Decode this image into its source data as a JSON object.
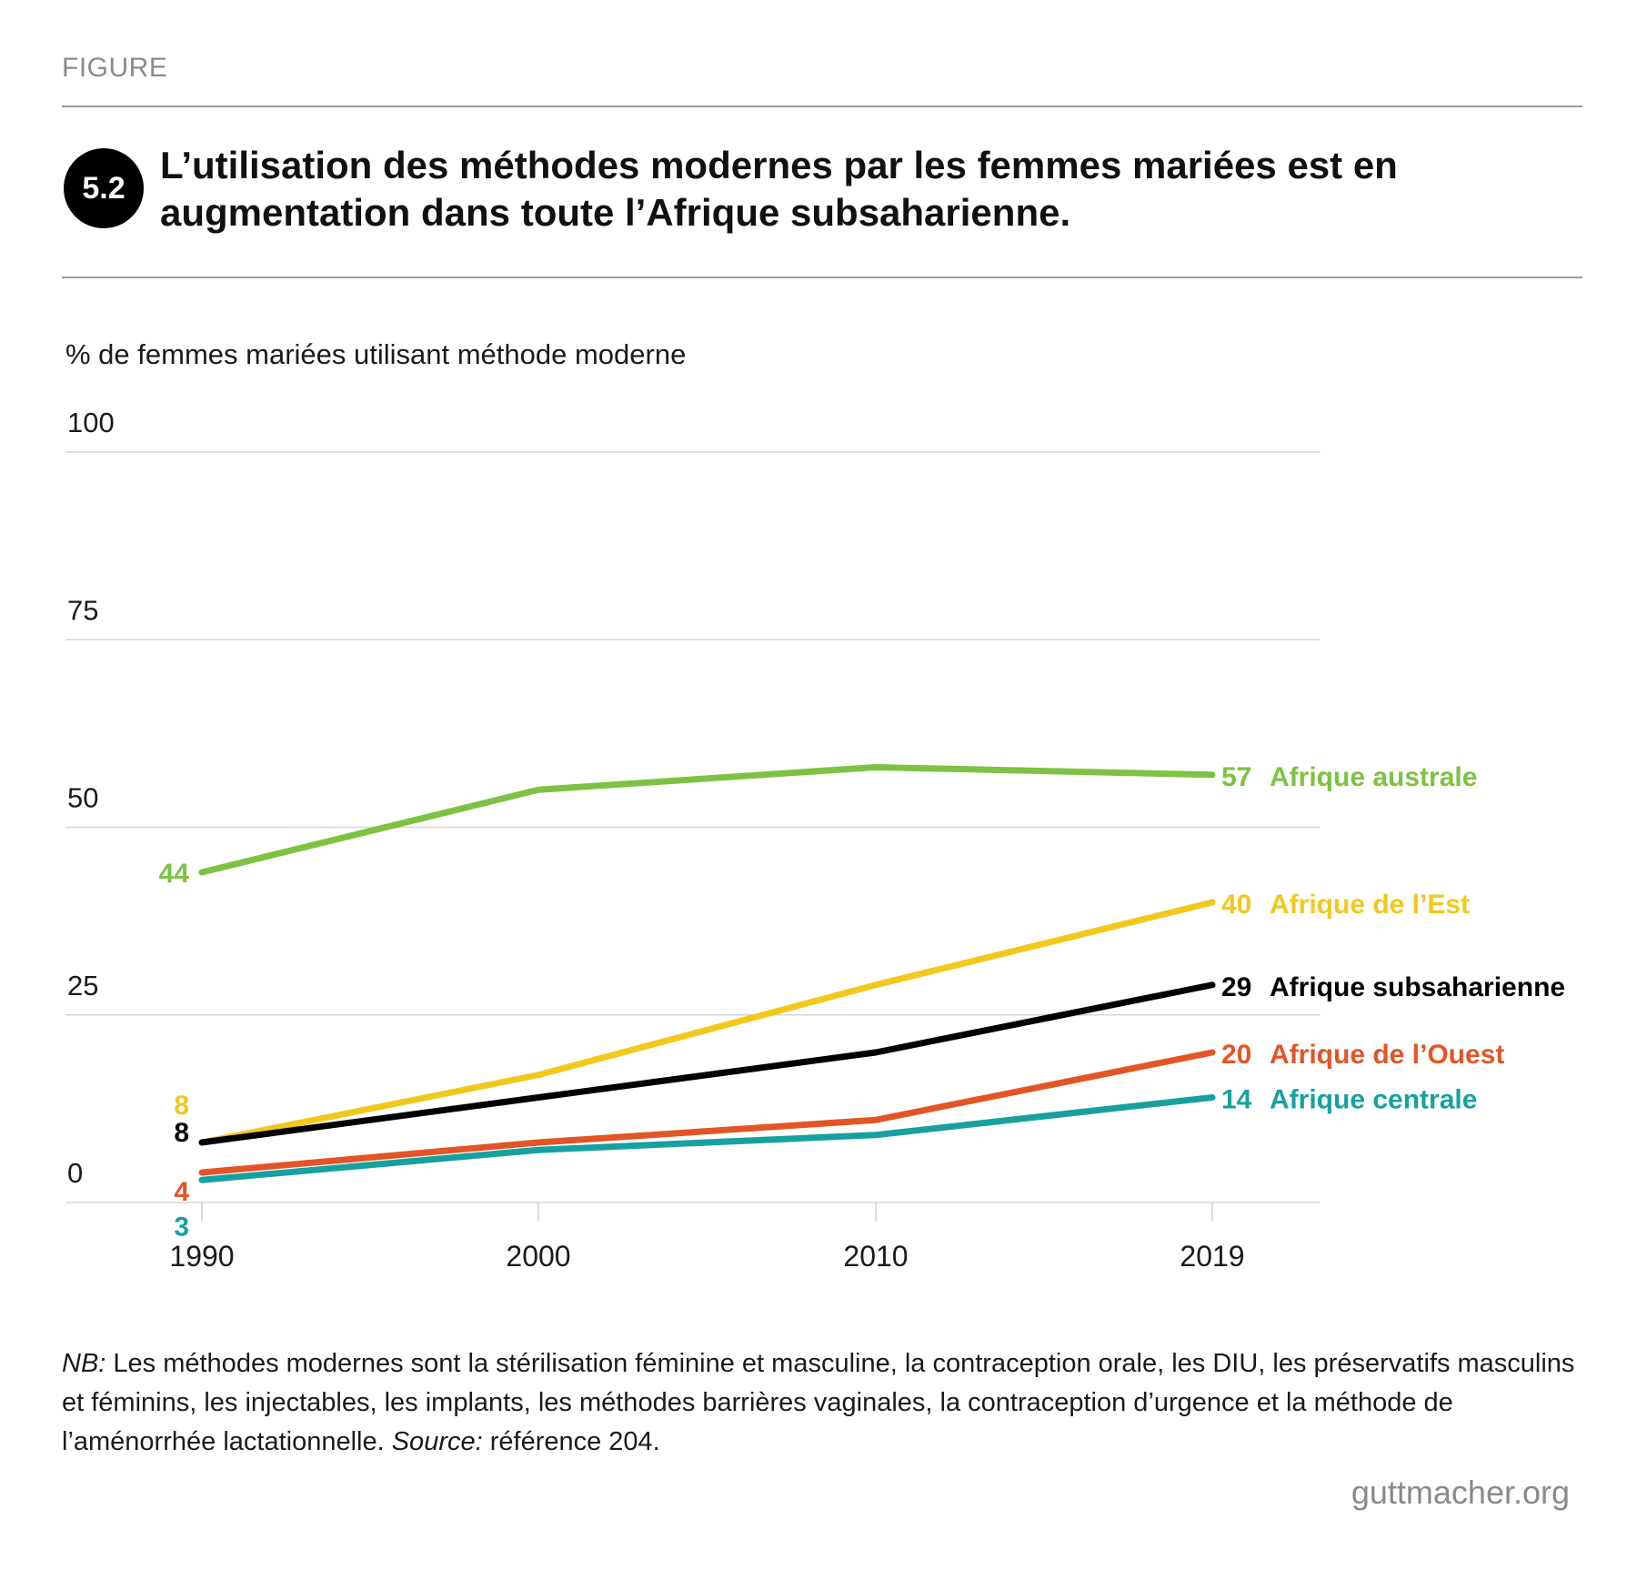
{
  "header": {
    "kicker": "FIGURE",
    "badge": "5.2",
    "title_line1": "L’utilisation des méthodes modernes par les femmes mariées est en",
    "title_line2": "augmentation dans toute l’Afrique subsaharienne."
  },
  "chart_data": {
    "type": "line",
    "title": "L’utilisation des méthodes modernes par les femmes mariées est en augmentation dans toute l’Afrique subsaharienne.",
    "ylabel": "% de femmes mariées utilisant méthode moderne",
    "xlabel": "",
    "ylim": [
      0,
      100
    ],
    "yticks": [
      0,
      25,
      50,
      75,
      100
    ],
    "x": [
      "1990",
      "2000",
      "2010",
      "2019"
    ],
    "grid": true,
    "legend": "direct labels at line ends (right)",
    "series": [
      {
        "name": "Afrique australe",
        "color": "#7dc242",
        "values": [
          44,
          55,
          58,
          57
        ],
        "start_label": "44",
        "end_label": "57"
      },
      {
        "name": "Afrique de l’Est",
        "color": "#f2c81c",
        "values": [
          8,
          17,
          29,
          40
        ],
        "start_label": "8",
        "end_label": "40"
      },
      {
        "name": "Afrique subsaharienne",
        "color": "#000000",
        "values": [
          8,
          14,
          20,
          29
        ],
        "start_label": "8",
        "end_label": "29"
      },
      {
        "name": "Afrique de l’Ouest",
        "color": "#e25526",
        "values": [
          4,
          8,
          11,
          20
        ],
        "start_label": "4",
        "end_label": "20"
      },
      {
        "name": "Afrique centrale",
        "color": "#16a1a0",
        "values": [
          3,
          7,
          9,
          14
        ],
        "start_label": "3",
        "end_label": "14"
      }
    ]
  },
  "footer": {
    "note_prefix": "NB:",
    "note_text": " Les méthodes modernes sont la stérilisation féminine et masculine, la contraception orale, les DIU, les préservatifs masculins et féminins, les injectables, les implants, les méthodes barrières vaginales, la contraception d’urgence et la méthode de l’aménorrhée lactationnelle. ",
    "source_prefix": "Source:",
    "source_text": " référence 204.",
    "brand": "guttmacher.org"
  }
}
